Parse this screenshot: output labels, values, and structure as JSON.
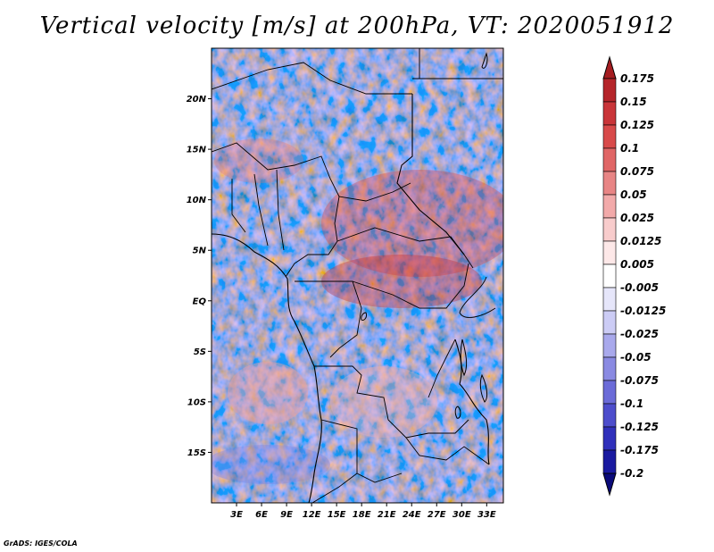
{
  "title": "Vertical velocity [m/s] at 200hPa, VT: 2020051912",
  "credit": "GrADS: IGES/COLA",
  "map": {
    "lat_labels": [
      "20N",
      "15N",
      "10N",
      "5N",
      "EQ",
      "5S",
      "10S",
      "15S"
    ],
    "lat_values": [
      20,
      15,
      10,
      5,
      0,
      -5,
      -10,
      -15
    ],
    "lon_labels": [
      "3E",
      "6E",
      "9E",
      "12E",
      "15E",
      "18E",
      "21E",
      "24E",
      "27E",
      "30E",
      "33E"
    ],
    "lon_values": [
      3,
      6,
      9,
      12,
      15,
      18,
      21,
      24,
      27,
      30,
      33
    ],
    "lon_range": [
      0,
      35
    ],
    "lat_range": [
      -20,
      25
    ]
  },
  "colorbar": {
    "labels": [
      "0.175",
      "0.15",
      "0.125",
      "0.1",
      "0.075",
      "0.05",
      "0.025",
      "0.0125",
      "0.005",
      "-0.005",
      "-0.0125",
      "-0.025",
      "-0.05",
      "-0.075",
      "-0.1",
      "-0.125",
      "-0.175",
      "-0.2"
    ],
    "colors": [
      "#a51d21",
      "#b5252a",
      "#c93539",
      "#d84a4a",
      "#e06666",
      "#e88585",
      "#f2aaaa",
      "#f8cccc",
      "#fde8e8",
      "#ffffff",
      "#e6e6fa",
      "#ccccf5",
      "#a9a9ec",
      "#8a8ae2",
      "#6b6bd8",
      "#4d4dcc",
      "#3030bb",
      "#1a1aa0",
      "#0b0b7a"
    ],
    "top_tip_color": "#a51d21",
    "bottom_tip_color": "#0b0b7a"
  }
}
